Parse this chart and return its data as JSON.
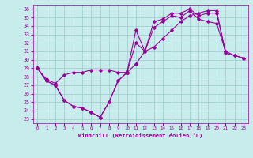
{
  "xlabel": "Windchill (Refroidissement éolien,°C)",
  "xlim": [
    -0.5,
    23.5
  ],
  "ylim": [
    22.5,
    36.5
  ],
  "yticks": [
    23,
    24,
    25,
    26,
    27,
    28,
    29,
    30,
    31,
    32,
    33,
    34,
    35,
    36
  ],
  "xticks": [
    0,
    1,
    2,
    3,
    4,
    5,
    6,
    7,
    8,
    9,
    10,
    11,
    12,
    13,
    14,
    15,
    16,
    17,
    18,
    19,
    20,
    21,
    22,
    23
  ],
  "bg_color": "#c8ecec",
  "line_color": "#990099",
  "grid_color": "#99cccc",
  "line1_x": [
    0,
    1,
    2,
    3,
    4,
    5,
    6,
    7,
    8,
    9,
    10,
    11,
    12,
    13,
    14,
    15,
    16,
    17,
    18,
    19,
    20,
    21,
    22,
    23
  ],
  "line1_y": [
    29,
    27.7,
    27.2,
    28.2,
    28.5,
    28.5,
    28.8,
    28.8,
    28.8,
    28.5,
    28.5,
    29.5,
    31.0,
    31.5,
    32.5,
    33.5,
    34.5,
    35.2,
    35.5,
    35.8,
    35.8,
    30.8,
    30.5,
    30.2
  ],
  "line2_x": [
    0,
    1,
    2,
    3,
    4,
    5,
    6,
    7,
    8,
    9,
    10,
    11,
    12,
    13,
    14,
    15,
    16,
    17,
    18,
    19,
    20,
    21
  ],
  "line2_y": [
    29,
    27.5,
    27.0,
    25.2,
    24.5,
    24.3,
    23.8,
    23.2,
    25.0,
    27.5,
    28.5,
    33.5,
    31.0,
    34.5,
    34.8,
    35.5,
    35.5,
    36.0,
    35.2,
    35.5,
    35.5,
    31.0
  ],
  "line3_x": [
    0,
    1,
    2,
    3,
    4,
    5,
    6,
    7,
    8,
    9,
    10,
    11,
    12,
    13,
    14,
    15,
    16,
    17,
    18,
    19,
    20,
    21,
    22,
    23
  ],
  "line3_y": [
    29,
    27.5,
    27.0,
    25.2,
    24.5,
    24.3,
    23.8,
    23.2,
    25.0,
    27.5,
    28.5,
    32.0,
    31.0,
    33.8,
    34.5,
    35.2,
    35.0,
    35.8,
    34.8,
    34.5,
    34.3,
    31.0,
    30.5,
    30.2
  ]
}
